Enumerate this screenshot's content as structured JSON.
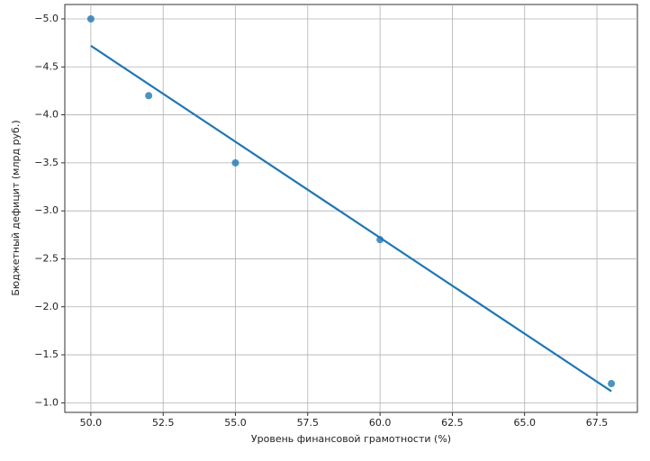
{
  "chart_data": {
    "type": "scatter",
    "xlabel": "Уровень финансовой грамотности (%)",
    "ylabel": "Бюджетный дефицит (млрд руб.)",
    "points": {
      "x": [
        50,
        52,
        55,
        60,
        68
      ],
      "values": [
        -5.0,
        -4.2,
        -3.5,
        -2.7,
        -1.2
      ],
      "color": "#1f77b4"
    },
    "fit_line": {
      "x": [
        50,
        68
      ],
      "values": [
        -4.72,
        -1.12
      ],
      "color": "#1f77b4"
    },
    "xlim": [
      49.1,
      68.9
    ],
    "ylim": [
      -0.9,
      -5.15
    ],
    "xticks": [
      {
        "value": 50,
        "label": "50.0"
      },
      {
        "value": 52.5,
        "label": "52.5"
      },
      {
        "value": 55,
        "label": "55.0"
      },
      {
        "value": 57.5,
        "label": "57.5"
      },
      {
        "value": 60,
        "label": "60.0"
      },
      {
        "value": 62.5,
        "label": "62.5"
      },
      {
        "value": 65,
        "label": "65.0"
      },
      {
        "value": 67.5,
        "label": "67.5"
      }
    ],
    "yticks": [
      {
        "value": -5,
        "label": "−5.0"
      },
      {
        "value": -4.5,
        "label": "−4.5"
      },
      {
        "value": -4,
        "label": "−4.0"
      },
      {
        "value": -3.5,
        "label": "−3.5"
      },
      {
        "value": -3,
        "label": "−3.0"
      },
      {
        "value": -2.5,
        "label": "−2.5"
      },
      {
        "value": -2,
        "label": "−2.0"
      },
      {
        "value": -1.5,
        "label": "−1.5"
      },
      {
        "value": -1,
        "label": "−1.0"
      }
    ],
    "grid": true
  }
}
